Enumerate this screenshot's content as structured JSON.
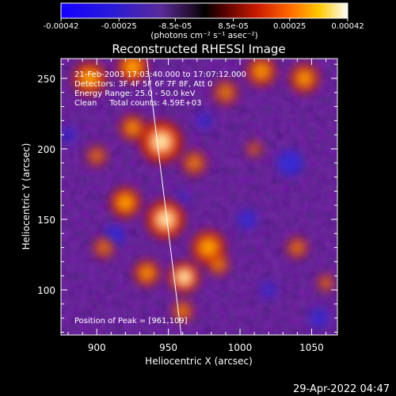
{
  "chart_data": {
    "type": "heatmap",
    "title": "Reconstructed RHESSI Image",
    "xlabel": "Heliocentric X (arcsec)",
    "ylabel": "Heliocentric Y (arcsec)",
    "xlim": [
      875,
      1068
    ],
    "ylim": [
      68,
      264
    ],
    "x_ticks": [
      900,
      950,
      1000,
      1050
    ],
    "y_ticks": [
      100,
      150,
      200,
      250
    ],
    "colorbar": {
      "ticks": [
        "-0.00042",
        "-0.00025",
        "-8.5e-05",
        "8.5e-05",
        "0.00025",
        "0.00042"
      ],
      "tick_values": [
        -0.00042,
        -0.00025,
        -8.5e-05,
        8.5e-05,
        0.00025,
        0.00042
      ],
      "range": [
        -0.00042,
        0.00042
      ],
      "unit": "(photons cm⁻² s⁻¹ asec⁻²)"
    },
    "annotations": [
      "21-Feb-2003 17:03:40.000 to 17:07:12.000",
      "Detectors: 3F 4F 5F 6F 7F 8F, Att 0",
      "Energy Range: 25.0 - 50.0 keV",
      "Clean     Total counts: 4.59E+03"
    ],
    "peak_label": "Position of Peak = [961,109]",
    "peak": [
      961,
      109
    ],
    "limb_line": [
      [
        935,
        264
      ],
      [
        959,
        68
      ]
    ],
    "hotspots": [
      {
        "x": 961,
        "y": 109,
        "r": 8,
        "a": 1.0
      },
      {
        "x": 935,
        "y": 112,
        "r": 7,
        "a": 0.75
      },
      {
        "x": 920,
        "y": 162,
        "r": 8,
        "a": 0.85
      },
      {
        "x": 948,
        "y": 150,
        "r": 10,
        "a": 0.95
      },
      {
        "x": 945,
        "y": 205,
        "r": 11,
        "a": 0.95
      },
      {
        "x": 968,
        "y": 190,
        "r": 7,
        "a": 0.55
      },
      {
        "x": 925,
        "y": 215,
        "r": 7,
        "a": 0.7
      },
      {
        "x": 895,
        "y": 250,
        "r": 9,
        "a": 0.8
      },
      {
        "x": 925,
        "y": 258,
        "r": 8,
        "a": 0.9
      },
      {
        "x": 978,
        "y": 130,
        "r": 9,
        "a": 0.85
      },
      {
        "x": 985,
        "y": 118,
        "r": 6,
        "a": 0.6
      },
      {
        "x": 990,
        "y": 240,
        "r": 7,
        "a": 0.55
      },
      {
        "x": 1015,
        "y": 255,
        "r": 8,
        "a": 0.75
      },
      {
        "x": 1045,
        "y": 250,
        "r": 8,
        "a": 0.75
      },
      {
        "x": 1040,
        "y": 130,
        "r": 6,
        "a": 0.55
      },
      {
        "x": 1060,
        "y": 105,
        "r": 5,
        "a": 0.5
      },
      {
        "x": 905,
        "y": 130,
        "r": 6,
        "a": 0.55
      },
      {
        "x": 1010,
        "y": 200,
        "r": 5,
        "a": 0.4
      },
      {
        "x": 960,
        "y": 85,
        "r": 6,
        "a": 0.6
      },
      {
        "x": 900,
        "y": 195,
        "r": 6,
        "a": 0.5
      }
    ],
    "coldspots": [
      {
        "x": 912,
        "y": 138,
        "r": 7,
        "a": 0.9
      },
      {
        "x": 1035,
        "y": 190,
        "r": 9,
        "a": 0.8
      },
      {
        "x": 1005,
        "y": 150,
        "r": 7,
        "a": 0.7
      },
      {
        "x": 880,
        "y": 210,
        "r": 6,
        "a": 0.6
      },
      {
        "x": 1055,
        "y": 80,
        "r": 7,
        "a": 0.7
      },
      {
        "x": 975,
        "y": 220,
        "r": 6,
        "a": 0.6
      },
      {
        "x": 1020,
        "y": 100,
        "r": 6,
        "a": 0.6
      },
      {
        "x": 960,
        "y": 165,
        "r": 5,
        "a": 0.5
      }
    ]
  },
  "footer": {
    "timestamp": "29-Apr-2022 04:47"
  }
}
